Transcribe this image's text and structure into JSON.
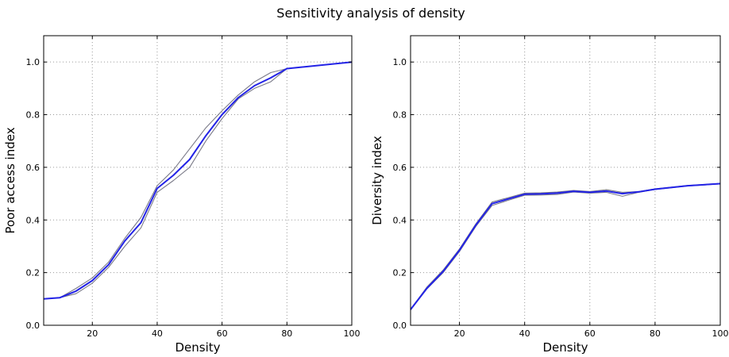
{
  "figure_title": "Sensitivity analysis of density",
  "colors": {
    "main_line": "#2323e6",
    "band_line": "#7a7a88",
    "frame": "#000000"
  },
  "chart_data": [
    {
      "type": "line",
      "xlabel": "Density",
      "ylabel": "Poor access index",
      "xlim": [
        5,
        100
      ],
      "ylim": [
        0,
        1.1
      ],
      "xticks": [
        20,
        40,
        60,
        80,
        100
      ],
      "yticks": [
        0.0,
        0.2,
        0.4,
        0.6,
        0.8,
        1.0
      ],
      "grid": true,
      "series": [
        {
          "role": "main",
          "x": [
            5,
            10,
            15,
            20,
            25,
            30,
            35,
            40,
            45,
            50,
            55,
            60,
            65,
            70,
            75,
            80,
            100
          ],
          "y": [
            0.1,
            0.105,
            0.13,
            0.17,
            0.23,
            0.32,
            0.39,
            0.52,
            0.57,
            0.63,
            0.72,
            0.8,
            0.865,
            0.91,
            0.94,
            0.975,
            1.0
          ]
        },
        {
          "role": "upper",
          "x": [
            5,
            10,
            15,
            20,
            25,
            30,
            35,
            40,
            45,
            50,
            55,
            60,
            65,
            70,
            75,
            80,
            100
          ],
          "y": [
            0.1,
            0.105,
            0.14,
            0.18,
            0.24,
            0.33,
            0.41,
            0.53,
            0.59,
            0.67,
            0.75,
            0.815,
            0.875,
            0.925,
            0.96,
            0.975,
            1.0
          ]
        },
        {
          "role": "lower",
          "x": [
            5,
            10,
            15,
            20,
            25,
            30,
            35,
            40,
            45,
            50,
            55,
            60,
            65,
            70,
            75,
            80,
            100
          ],
          "y": [
            0.1,
            0.105,
            0.12,
            0.16,
            0.22,
            0.3,
            0.37,
            0.505,
            0.55,
            0.6,
            0.7,
            0.785,
            0.86,
            0.9,
            0.925,
            0.975,
            1.0
          ]
        }
      ]
    },
    {
      "type": "line",
      "xlabel": "Density",
      "ylabel": "Diversity index",
      "xlim": [
        5,
        100
      ],
      "ylim": [
        0,
        1.1
      ],
      "xticks": [
        20,
        40,
        60,
        80,
        100
      ],
      "yticks": [
        0.0,
        0.2,
        0.4,
        0.6,
        0.8,
        1.0
      ],
      "grid": true,
      "series": [
        {
          "role": "main",
          "x": [
            5,
            10,
            15,
            20,
            25,
            30,
            35,
            40,
            45,
            50,
            55,
            60,
            65,
            70,
            75,
            80,
            90,
            100
          ],
          "y": [
            0.06,
            0.14,
            0.205,
            0.285,
            0.38,
            0.462,
            0.48,
            0.498,
            0.499,
            0.502,
            0.509,
            0.505,
            0.51,
            0.5,
            0.507,
            0.517,
            0.53,
            0.538
          ]
        },
        {
          "role": "upper",
          "x": [
            5,
            10,
            15,
            20,
            25,
            30,
            35,
            40,
            45,
            50,
            55,
            60,
            65,
            70,
            75,
            80,
            90,
            100
          ],
          "y": [
            0.06,
            0.145,
            0.21,
            0.29,
            0.385,
            0.468,
            0.485,
            0.502,
            0.503,
            0.506,
            0.512,
            0.508,
            0.515,
            0.505,
            0.508,
            0.518,
            0.531,
            0.539
          ]
        },
        {
          "role": "lower",
          "x": [
            5,
            10,
            15,
            20,
            25,
            30,
            35,
            40,
            45,
            50,
            55,
            60,
            65,
            70,
            75,
            80,
            90,
            100
          ],
          "y": [
            0.058,
            0.138,
            0.2,
            0.28,
            0.375,
            0.455,
            0.475,
            0.494,
            0.495,
            0.497,
            0.506,
            0.502,
            0.505,
            0.49,
            0.505,
            0.516,
            0.529,
            0.537
          ]
        }
      ]
    }
  ]
}
